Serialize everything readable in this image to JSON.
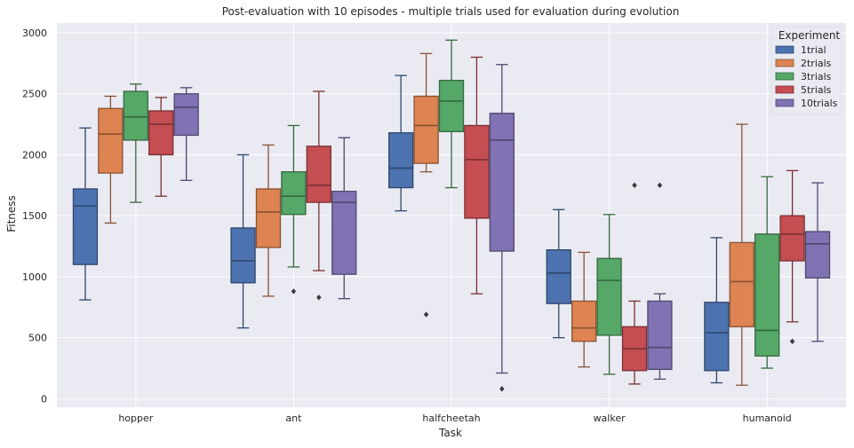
{
  "chart_data": {
    "type": "box",
    "title": "Post-evaluation with 10 episodes - multiple trials used for evaluation during evolution",
    "xlabel": "Task",
    "ylabel": "Fitness",
    "categories": [
      "hopper",
      "ant",
      "halfcheetah",
      "walker",
      "humanoid"
    ],
    "ylim": [
      -70,
      3080
    ],
    "yticks": [
      0,
      500,
      1000,
      1500,
      2000,
      2500,
      3000
    ],
    "grid": true,
    "background": "#eaeaf2",
    "legend": {
      "title": "Experiment",
      "placement": "top-right"
    },
    "series": [
      {
        "name": "1trial",
        "color": "#4c72b0",
        "boxes": [
          {
            "whislo": 810,
            "q1": 1100,
            "med": 1580,
            "q3": 1720,
            "whishi": 2220,
            "fliers": []
          },
          {
            "whislo": 580,
            "q1": 950,
            "med": 1130,
            "q3": 1400,
            "whishi": 2000,
            "fliers": []
          },
          {
            "whislo": 1540,
            "q1": 1730,
            "med": 1890,
            "q3": 2180,
            "whishi": 2650,
            "fliers": []
          },
          {
            "whislo": 500,
            "q1": 780,
            "med": 1030,
            "q3": 1220,
            "whishi": 1550,
            "fliers": []
          },
          {
            "whislo": 130,
            "q1": 230,
            "med": 540,
            "q3": 790,
            "whishi": 1320,
            "fliers": []
          }
        ]
      },
      {
        "name": "2trials",
        "color": "#dd8452",
        "boxes": [
          {
            "whislo": 1440,
            "q1": 1850,
            "med": 2170,
            "q3": 2380,
            "whishi": 2480,
            "fliers": []
          },
          {
            "whislo": 840,
            "q1": 1240,
            "med": 1530,
            "q3": 1720,
            "whishi": 2080,
            "fliers": []
          },
          {
            "whislo": 1860,
            "q1": 1930,
            "med": 2240,
            "q3": 2480,
            "whishi": 2830,
            "fliers": [
              690
            ]
          },
          {
            "whislo": 260,
            "q1": 470,
            "med": 580,
            "q3": 800,
            "whishi": 1200,
            "fliers": []
          },
          {
            "whislo": 110,
            "q1": 590,
            "med": 960,
            "q3": 1280,
            "whishi": 2250,
            "fliers": []
          }
        ]
      },
      {
        "name": "3trials",
        "color": "#55a868",
        "boxes": [
          {
            "whislo": 1610,
            "q1": 2120,
            "med": 2310,
            "q3": 2520,
            "whishi": 2580,
            "fliers": []
          },
          {
            "whislo": 1080,
            "q1": 1510,
            "med": 1660,
            "q3": 1860,
            "whishi": 2240,
            "fliers": [
              880
            ]
          },
          {
            "whislo": 1730,
            "q1": 2190,
            "med": 2440,
            "q3": 2610,
            "whishi": 2940,
            "fliers": []
          },
          {
            "whislo": 200,
            "q1": 520,
            "med": 970,
            "q3": 1150,
            "whishi": 1510,
            "fliers": []
          },
          {
            "whislo": 250,
            "q1": 350,
            "med": 560,
            "q3": 1350,
            "whishi": 1820,
            "fliers": []
          }
        ]
      },
      {
        "name": "5trials",
        "color": "#c44e52",
        "boxes": [
          {
            "whislo": 1660,
            "q1": 2000,
            "med": 2250,
            "q3": 2360,
            "whishi": 2470,
            "fliers": []
          },
          {
            "whislo": 1050,
            "q1": 1610,
            "med": 1750,
            "q3": 2070,
            "whishi": 2520,
            "fliers": [
              830
            ]
          },
          {
            "whislo": 860,
            "q1": 1480,
            "med": 1960,
            "q3": 2240,
            "whishi": 2800,
            "fliers": []
          },
          {
            "whislo": 120,
            "q1": 230,
            "med": 410,
            "q3": 590,
            "whishi": 800,
            "fliers": [
              1750
            ]
          },
          {
            "whislo": 630,
            "q1": 1130,
            "med": 1350,
            "q3": 1500,
            "whishi": 1870,
            "fliers": [
              470
            ]
          }
        ]
      },
      {
        "name": "10trials",
        "color": "#8172b3",
        "boxes": [
          {
            "whislo": 1790,
            "q1": 2160,
            "med": 2390,
            "q3": 2500,
            "whishi": 2550,
            "fliers": []
          },
          {
            "whislo": 820,
            "q1": 1020,
            "med": 1610,
            "q3": 1700,
            "whishi": 2140,
            "fliers": []
          },
          {
            "whislo": 210,
            "q1": 1210,
            "med": 2120,
            "q3": 2340,
            "whishi": 2740,
            "fliers": [
              80
            ]
          },
          {
            "whislo": 160,
            "q1": 240,
            "med": 420,
            "q3": 800,
            "whishi": 860,
            "fliers": [
              1750
            ]
          },
          {
            "whislo": 470,
            "q1": 990,
            "med": 1270,
            "q3": 1370,
            "whishi": 1770,
            "fliers": []
          }
        ]
      }
    ]
  }
}
